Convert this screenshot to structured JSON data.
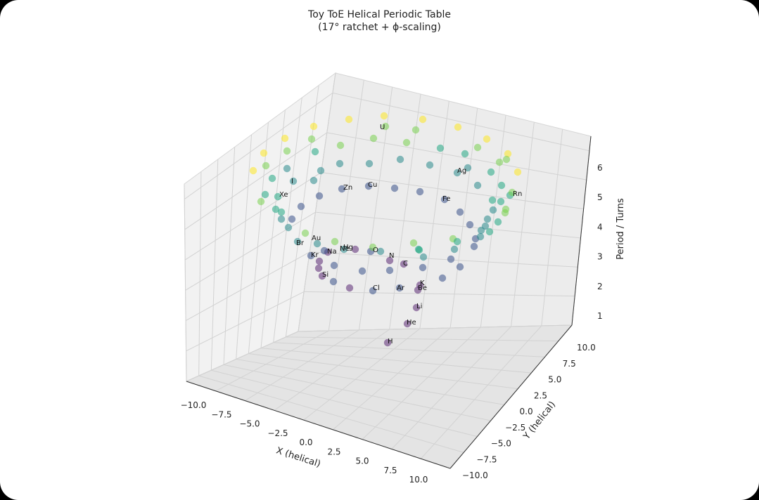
{
  "chart_data": {
    "type": "scatter",
    "title": "Toy ToE Helical Periodic Table",
    "subtitle": "(17° ratchet + ϕ-scaling)",
    "xlabel": "X (helical)",
    "ylabel": "Y (helical)",
    "zlabel": "Period / Turns",
    "x_ticks": [
      "−10.0",
      "−7.5",
      "−5.0",
      "−2.5",
      "0.0",
      "2.5",
      "5.0",
      "7.5",
      "10.0"
    ],
    "y_ticks": [
      "10.0",
      "7.5",
      "5.0",
      "2.5",
      "0.0",
      "−2.5",
      "−5.0",
      "−7.5",
      "−10.0"
    ],
    "z_ticks": [
      "1",
      "2",
      "3",
      "4",
      "5",
      "6"
    ],
    "colormap": "viridis",
    "colors": {
      "c0": "#5b2a75",
      "c1": "#3b528b",
      "c2": "#2a8b8c",
      "c3": "#22a884",
      "c4": "#7ad151",
      "c5": "#fde725"
    },
    "labels": [
      "U",
      "Ag",
      "Rn",
      "Fe",
      "Zn",
      "Cu",
      "I",
      "Xe",
      "Au",
      "Br",
      "Hg",
      "Ne",
      "Kr",
      "Na",
      "O",
      "N",
      "C",
      "Si",
      "Cl",
      "Ar",
      "K",
      "Be",
      "Li",
      "He",
      "H"
    ]
  }
}
